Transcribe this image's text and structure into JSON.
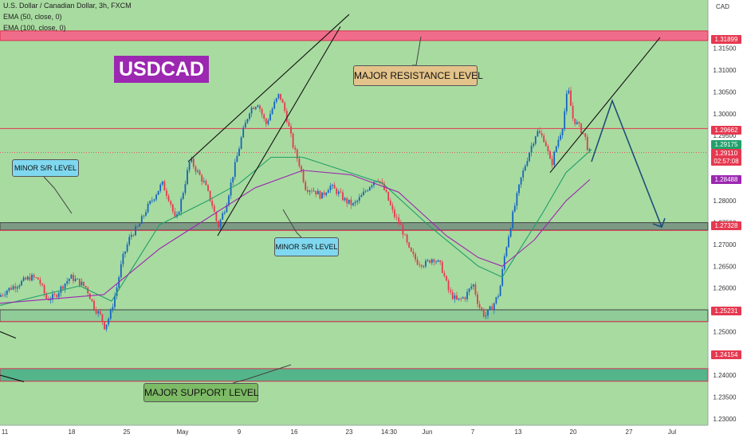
{
  "header": {
    "symbol_line": "U.S. Dollar / Canadian Dollar, 3h, FXCM",
    "ema50": "EMA (50, close, 0)",
    "ema100": "EMA (100, close, 0)",
    "currency": "CAD"
  },
  "annotations": {
    "title_tag": "USDCAD",
    "major_resistance": "MAJOR RESISTANCE LEVEL",
    "minor_sr_left": "MINOR S/R LEVEL",
    "minor_sr_mid": "MINOR S/R LEVEL",
    "major_support": "MAJOR SUPPORT LEVEL"
  },
  "price_labels": {
    "resistance": "1.31899",
    "level_1": "1.29662",
    "ema_fast": "1.29175",
    "last_price": "1.29110",
    "countdown": "02:57:08",
    "ema_slow": "1.28488",
    "minor_sr": "1.27328",
    "support_top": "1.25231",
    "support_bottom": "1.24154"
  },
  "colors": {
    "background": "#a8dba0",
    "up_candle": "#1565c0",
    "down_candle": "#e53950",
    "ema50": "#20a06a",
    "ema100": "#9c27b0",
    "resistance_zone": "#f06d8a",
    "support_zone": "#55b58a",
    "projection": "#1f4e79"
  },
  "chart_data": {
    "type": "candlestick",
    "symbol": "U.S. Dollar / Canadian Dollar, 3h, FXCM",
    "y_range": [
      1.2285,
      1.3261
    ],
    "x_ticks": [
      "11",
      "18",
      "25",
      "May",
      "9",
      "16",
      "23",
      "14:30",
      "Jun",
      "7",
      "13",
      "20",
      "27",
      "Jul"
    ],
    "y_ticks": [
      "1.31500",
      "1.31000",
      "1.30500",
      "1.30000",
      "1.29500",
      "1.28500",
      "1.28000",
      "1.27500",
      "1.27000",
      "1.26500",
      "1.26000",
      "1.25500",
      "1.25000",
      "1.24500",
      "1.24000",
      "1.23500",
      "1.23000"
    ],
    "price_path": [
      [
        0,
        1.258
      ],
      [
        10,
        1.2595
      ],
      [
        20,
        1.2605
      ],
      [
        30,
        1.2615
      ],
      [
        40,
        1.2625
      ],
      [
        50,
        1.262
      ],
      [
        60,
        1.2575
      ],
      [
        70,
        1.258
      ],
      [
        80,
        1.2605
      ],
      [
        90,
        1.2625
      ],
      [
        100,
        1.2615
      ],
      [
        110,
        1.26
      ],
      [
        120,
        1.2555
      ],
      [
        128,
        1.2535
      ],
      [
        133,
        1.251
      ],
      [
        140,
        1.254
      ],
      [
        148,
        1.26
      ],
      [
        155,
        1.2665
      ],
      [
        165,
        1.272
      ],
      [
        175,
        1.274
      ],
      [
        185,
        1.278
      ],
      [
        195,
        1.281
      ],
      [
        205,
        1.284
      ],
      [
        215,
        1.28
      ],
      [
        222,
        1.275
      ],
      [
        230,
        1.281
      ],
      [
        240,
        1.2895
      ],
      [
        248,
        1.287
      ],
      [
        258,
        1.284
      ],
      [
        268,
        1.279
      ],
      [
        275,
        1.274
      ],
      [
        285,
        1.279
      ],
      [
        295,
        1.287
      ],
      [
        305,
        1.295
      ],
      [
        315,
        1.301
      ],
      [
        325,
        1.3025
      ],
      [
        335,
        1.2975
      ],
      [
        345,
        1.302
      ],
      [
        352,
        1.3045
      ],
      [
        360,
        1.3
      ],
      [
        370,
        1.292
      ],
      [
        378,
        1.288
      ],
      [
        385,
        1.283
      ],
      [
        395,
        1.2825
      ],
      [
        405,
        1.281
      ],
      [
        415,
        1.2835
      ],
      [
        425,
        1.282
      ],
      [
        435,
        1.28
      ],
      [
        445,
        1.279
      ],
      [
        455,
        1.281
      ],
      [
        465,
        1.2835
      ],
      [
        475,
        1.2855
      ],
      [
        485,
        1.282
      ],
      [
        495,
        1.277
      ],
      [
        505,
        1.274
      ],
      [
        515,
        1.2685
      ],
      [
        525,
        1.266
      ],
      [
        535,
        1.2655
      ],
      [
        545,
        1.267
      ],
      [
        555,
        1.265
      ],
      [
        565,
        1.259
      ],
      [
        575,
        1.257
      ],
      [
        585,
        1.258
      ],
      [
        595,
        1.261
      ],
      [
        602,
        1.256
      ],
      [
        610,
        1.2535
      ],
      [
        620,
        1.256
      ],
      [
        628,
        1.259
      ],
      [
        635,
        1.268
      ],
      [
        645,
        1.277
      ],
      [
        655,
        1.285
      ],
      [
        665,
        1.291
      ],
      [
        675,
        1.296
      ],
      [
        685,
        1.294
      ],
      [
        693,
        1.288
      ],
      [
        700,
        1.293
      ],
      [
        707,
        1.297
      ],
      [
        714,
        1.306
      ],
      [
        720,
        1.299
      ],
      [
        728,
        1.297
      ],
      [
        735,
        1.295
      ],
      [
        740,
        1.2911
      ]
    ],
    "ema50": [
      [
        0,
        1.256
      ],
      [
        100,
        1.2605
      ],
      [
        140,
        1.257
      ],
      [
        200,
        1.2745
      ],
      [
        260,
        1.28
      ],
      [
        300,
        1.284
      ],
      [
        340,
        1.29
      ],
      [
        380,
        1.29
      ],
      [
        430,
        1.287
      ],
      [
        480,
        1.284
      ],
      [
        540,
        1.274
      ],
      [
        600,
        1.265
      ],
      [
        630,
        1.2625
      ],
      [
        680,
        1.277
      ],
      [
        710,
        1.2865
      ],
      [
        742,
        1.2918
      ]
    ],
    "ema100": [
      [
        0,
        1.2565
      ],
      [
        130,
        1.2585
      ],
      [
        200,
        1.269
      ],
      [
        260,
        1.276
      ],
      [
        320,
        1.283
      ],
      [
        380,
        1.287
      ],
      [
        440,
        1.286
      ],
      [
        500,
        1.282
      ],
      [
        560,
        1.272
      ],
      [
        600,
        1.267
      ],
      [
        630,
        1.265
      ],
      [
        670,
        1.271
      ],
      [
        710,
        1.28
      ],
      [
        740,
        1.2849
      ]
    ],
    "levels": {
      "major_resistance": [
        1.3168,
        1.319
      ],
      "minor_sr": [
        1.2733,
        1.275
      ],
      "minor_support_zone": [
        1.2523,
        1.255
      ],
      "major_support": [
        1.2386,
        1.2415
      ],
      "level_1": 1.2966
    },
    "trendlines": [
      [
        [
          236,
          1.289
        ],
        [
          438,
          1.3228
        ]
      ],
      [
        [
          273,
          1.272
        ],
        [
          427,
          1.32
        ]
      ],
      [
        [
          690,
          1.2865
        ],
        [
          828,
          1.3175
        ]
      ],
      [
        [
          0,
          1.25
        ],
        [
          20,
          1.2485
        ]
      ],
      [
        [
          0,
          1.24
        ],
        [
          30,
          1.2385
        ]
      ]
    ],
    "projection": [
      [
        742,
        1.289
      ],
      [
        768,
        1.303
      ],
      [
        830,
        1.274
      ]
    ],
    "last_price": 1.2911
  }
}
